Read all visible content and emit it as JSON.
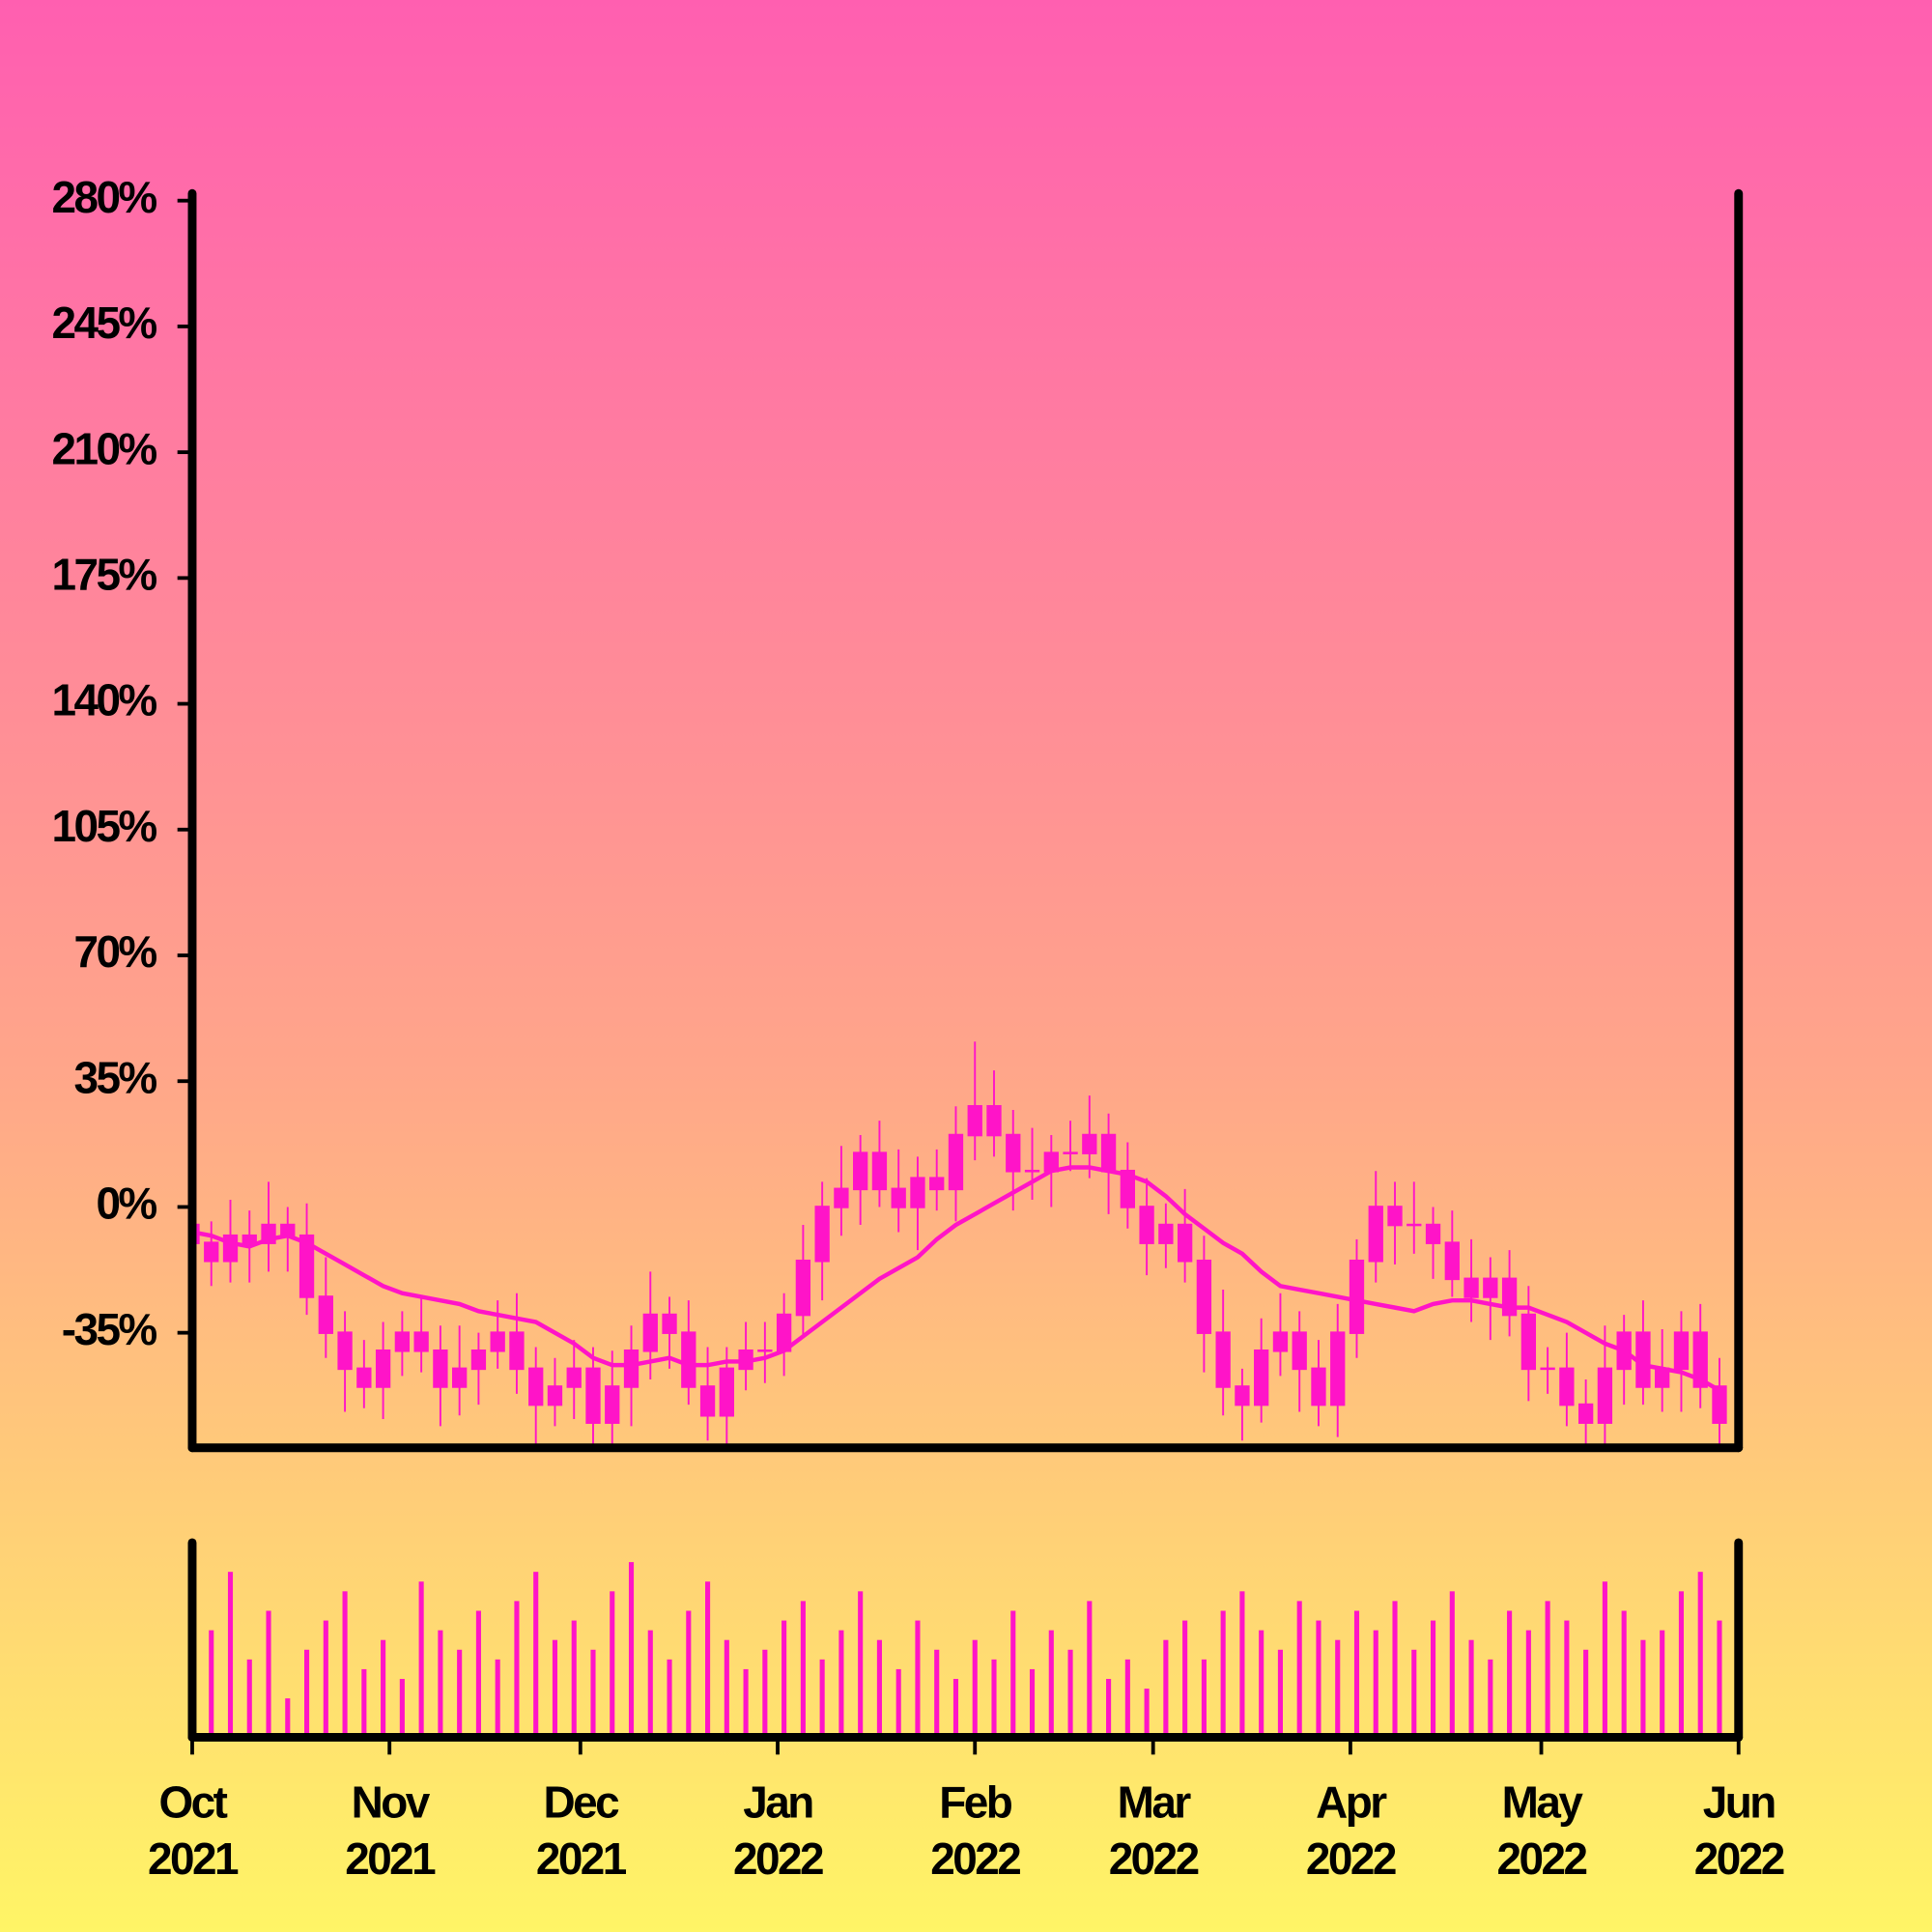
{
  "chart_data": {
    "type": "candlestick",
    "color": "#ff14c8",
    "x": [
      0,
      3,
      6,
      9,
      12,
      15,
      18,
      21,
      24,
      27,
      30,
      33,
      36,
      39,
      42,
      45,
      48,
      51,
      54,
      57,
      60,
      63,
      66,
      69,
      72,
      75,
      78,
      81,
      84,
      87,
      90,
      93,
      96,
      99,
      102,
      105,
      108,
      111,
      114,
      117,
      120,
      123,
      126,
      129,
      132,
      135,
      138,
      141,
      144,
      147,
      150,
      153,
      156,
      159,
      162,
      165,
      168,
      171,
      174,
      177,
      180,
      183,
      186,
      189,
      192,
      195,
      198,
      201,
      204,
      207,
      210,
      213,
      216,
      219,
      222,
      225,
      228,
      231,
      234,
      237,
      240
    ],
    "open": [
      -5,
      -10,
      -15,
      -8,
      -10,
      -5,
      -8,
      -25,
      -35,
      -45,
      -50,
      -40,
      -35,
      -40,
      -50,
      -45,
      -40,
      -35,
      -45,
      -55,
      -50,
      -45,
      -60,
      -50,
      -40,
      -30,
      -35,
      -50,
      -58,
      -45,
      -40,
      -40,
      -30,
      -15,
      0,
      5,
      15,
      5,
      0,
      8,
      5,
      20,
      28,
      20,
      10,
      10,
      15,
      15,
      20,
      10,
      0,
      -10,
      -5,
      -15,
      -35,
      -50,
      -55,
      -40,
      -35,
      -45,
      -55,
      -35,
      -15,
      0,
      -5,
      -5,
      -10,
      -20,
      -25,
      -20,
      -30,
      -45,
      -45,
      -55,
      -60,
      -45,
      -35,
      -50,
      -45,
      -35,
      -50
    ],
    "high": [
      3,
      -4,
      2,
      -1,
      7,
      0,
      1,
      -14,
      -29,
      -37,
      -32,
      -29,
      -25,
      -33,
      -33,
      -35,
      -26,
      -24,
      -39,
      -42,
      -37,
      -39,
      -40,
      -33,
      -18,
      -25,
      -26,
      -39,
      -39,
      -32,
      -32,
      -24,
      -5,
      7,
      17,
      20,
      24,
      16,
      14,
      16,
      28,
      46,
      38,
      27,
      22,
      20,
      24,
      31,
      26,
      18,
      8,
      1,
      5,
      -8,
      -23,
      -45,
      -31,
      -24,
      -29,
      -37,
      -27,
      -9,
      10,
      7,
      7,
      0,
      -1,
      -9,
      -14,
      -12,
      -22,
      -39,
      -35,
      -48,
      -33,
      -30,
      -26,
      -34,
      -29,
      -27,
      -42
    ],
    "low": [
      -19,
      -22,
      -21,
      -21,
      -18,
      -18,
      -30,
      -42,
      -57,
      -56,
      -59,
      -47,
      -46,
      -61,
      -58,
      -55,
      -45,
      -52,
      -67,
      -61,
      -59,
      -67,
      -66,
      -61,
      -48,
      -45,
      -55,
      -65,
      -70,
      -51,
      -49,
      -47,
      -36,
      -26,
      -8,
      -5,
      0,
      -7,
      -12,
      -1,
      -4,
      13,
      14,
      -1,
      2,
      0,
      10,
      8,
      -2,
      -6,
      -19,
      -17,
      -21,
      -46,
      -58,
      -65,
      -60,
      -47,
      -57,
      -61,
      -64,
      -42,
      -21,
      -16,
      -13,
      -20,
      -25,
      -32,
      -37,
      -36,
      -54,
      -52,
      -61,
      -71,
      -68,
      -55,
      -55,
      -57,
      -57,
      -56,
      -69
    ],
    "close": [
      -10,
      -15,
      -8,
      -10,
      -5,
      -8,
      -25,
      -35,
      -45,
      -50,
      -40,
      -35,
      -40,
      -50,
      -45,
      -40,
      -35,
      -45,
      -55,
      -50,
      -45,
      -60,
      -50,
      -40,
      -30,
      -35,
      -50,
      -58,
      -45,
      -40,
      -40,
      -30,
      -15,
      0,
      5,
      15,
      5,
      0,
      8,
      5,
      20,
      28,
      20,
      10,
      10,
      15,
      15,
      20,
      10,
      0,
      -10,
      -5,
      -15,
      -35,
      -50,
      -55,
      -40,
      -35,
      -45,
      -55,
      -35,
      -15,
      0,
      -5,
      -5,
      -10,
      -20,
      -25,
      -20,
      -30,
      -45,
      -45,
      -55,
      -60,
      -45,
      -35,
      -50,
      -45,
      -35,
      -50,
      -60
    ],
    "ma": [
      -7,
      -8,
      -10,
      -11,
      -9,
      -8,
      -10,
      -13,
      -16,
      -19,
      -22,
      -24,
      -25,
      -26,
      -27,
      -29,
      -30,
      -31,
      -32,
      -35,
      -38,
      -42,
      -44,
      -44,
      -43,
      -42,
      -44,
      -44,
      -43,
      -43,
      -42,
      -40,
      -36,
      -32,
      -28,
      -24,
      -20,
      -17,
      -14,
      -9,
      -5,
      -2,
      1,
      4,
      7,
      10,
      11,
      11,
      10,
      9,
      7,
      3,
      -2,
      -6,
      -10,
      -13,
      -18,
      -22,
      -23,
      -24,
      -25,
      -26,
      -27,
      -28,
      -29,
      -27,
      -26,
      -26,
      -27,
      -28,
      -28,
      -30,
      -32,
      -35,
      -38,
      -40,
      -44,
      -45,
      -46,
      -48,
      -51
    ],
    "volume": [
      70,
      55,
      85,
      40,
      65,
      20,
      45,
      60,
      75,
      35,
      50,
      30,
      80,
      55,
      45,
      65,
      40,
      70,
      85,
      50,
      60,
      45,
      75,
      90,
      55,
      40,
      65,
      80,
      50,
      35,
      45,
      60,
      70,
      40,
      55,
      75,
      50,
      35,
      60,
      45,
      30,
      50,
      40,
      65,
      35,
      55,
      45,
      70,
      30,
      40,
      25,
      50,
      60,
      40,
      65,
      75,
      55,
      45,
      70,
      60,
      50,
      65,
      55,
      70,
      45,
      60,
      75,
      50,
      40,
      65,
      55,
      70,
      60,
      45,
      80,
      65,
      50,
      55,
      75,
      85,
      60
    ],
    "volume_ylim": [
      0,
      100
    ],
    "xlim": [
      0,
      243
    ],
    "xticks": [
      {
        "value": 0,
        "label": "Oct 2021"
      },
      {
        "value": 31,
        "label": "Nov 2021"
      },
      {
        "value": 61,
        "label": "Dec 2021"
      },
      {
        "value": 92,
        "label": "Jan 2022"
      },
      {
        "value": 123,
        "label": "Feb 2022"
      },
      {
        "value": 151,
        "label": "Mar 2022"
      },
      {
        "value": 182,
        "label": "Apr 2022"
      },
      {
        "value": 212,
        "label": "May 2022"
      },
      {
        "value": 243,
        "label": "Jun 2022"
      }
    ],
    "ylim": [
      -67,
      282
    ],
    "yticks": [
      {
        "value": -35,
        "label": "-35%"
      },
      {
        "value": 0,
        "label": "0%"
      },
      {
        "value": 35,
        "label": "35%"
      },
      {
        "value": 70,
        "label": "70%"
      },
      {
        "value": 105,
        "label": "105%"
      },
      {
        "value": 140,
        "label": "140%"
      },
      {
        "value": 175,
        "label": "175%"
      },
      {
        "value": 210,
        "label": "210%"
      },
      {
        "value": 245,
        "label": "245%"
      },
      {
        "value": 280,
        "label": "280%"
      }
    ]
  }
}
